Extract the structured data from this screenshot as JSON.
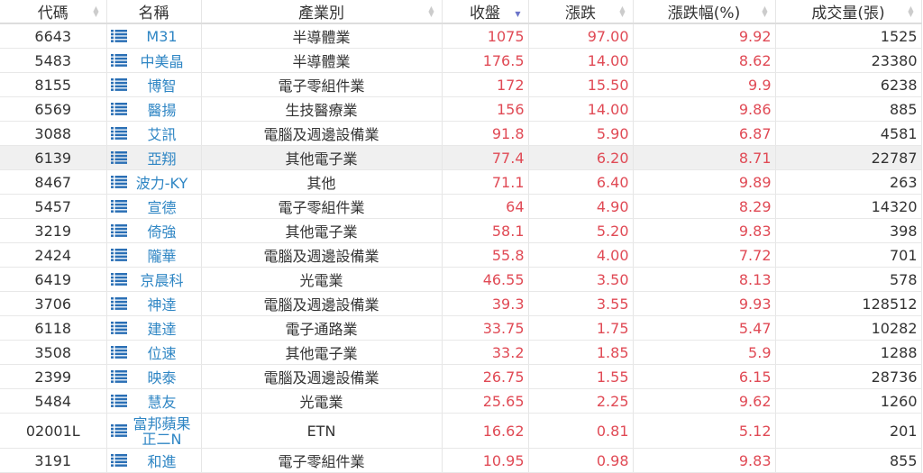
{
  "colors": {
    "up": "#e04a55",
    "name_link": "#2f86c4",
    "icon": "#2a6fb5"
  },
  "headers": [
    "代碼",
    "名稱",
    "產業別",
    "收盤",
    "漲跌",
    "漲跌幅(%)",
    "成交量(張)"
  ],
  "sorted_column": "收盤",
  "rows": [
    {
      "code": "6643",
      "name": "M31",
      "industry": "半導體業",
      "close": "1075",
      "change": "97.00",
      "pct": "9.92",
      "volume": "1525"
    },
    {
      "code": "5483",
      "name": "中美晶",
      "industry": "半導體業",
      "close": "176.5",
      "change": "14.00",
      "pct": "8.62",
      "volume": "23380"
    },
    {
      "code": "8155",
      "name": "博智",
      "industry": "電子零組件業",
      "close": "172",
      "change": "15.50",
      "pct": "9.9",
      "volume": "6238"
    },
    {
      "code": "6569",
      "name": "醫揚",
      "industry": "生技醫療業",
      "close": "156",
      "change": "14.00",
      "pct": "9.86",
      "volume": "885"
    },
    {
      "code": "3088",
      "name": "艾訊",
      "industry": "電腦及週邊設備業",
      "close": "91.8",
      "change": "5.90",
      "pct": "6.87",
      "volume": "4581"
    },
    {
      "code": "6139",
      "name": "亞翔",
      "industry": "其他電子業",
      "close": "77.4",
      "change": "6.20",
      "pct": "8.71",
      "volume": "22787"
    },
    {
      "code": "8467",
      "name": "波力-KY",
      "industry": "其他",
      "close": "71.1",
      "change": "6.40",
      "pct": "9.89",
      "volume": "263"
    },
    {
      "code": "5457",
      "name": "宣德",
      "industry": "電子零組件業",
      "close": "64",
      "change": "4.90",
      "pct": "8.29",
      "volume": "14320"
    },
    {
      "code": "3219",
      "name": "倚強",
      "industry": "其他電子業",
      "close": "58.1",
      "change": "5.20",
      "pct": "9.83",
      "volume": "398"
    },
    {
      "code": "2424",
      "name": "隴華",
      "industry": "電腦及週邊設備業",
      "close": "55.8",
      "change": "4.00",
      "pct": "7.72",
      "volume": "701"
    },
    {
      "code": "6419",
      "name": "京晨科",
      "industry": "光電業",
      "close": "46.55",
      "change": "3.50",
      "pct": "8.13",
      "volume": "578"
    },
    {
      "code": "3706",
      "name": "神達",
      "industry": "電腦及週邊設備業",
      "close": "39.3",
      "change": "3.55",
      "pct": "9.93",
      "volume": "128512"
    },
    {
      "code": "6118",
      "name": "建達",
      "industry": "電子通路業",
      "close": "33.75",
      "change": "1.75",
      "pct": "5.47",
      "volume": "10282"
    },
    {
      "code": "3508",
      "name": "位速",
      "industry": "其他電子業",
      "close": "33.2",
      "change": "1.85",
      "pct": "5.9",
      "volume": "1288"
    },
    {
      "code": "2399",
      "name": "映泰",
      "industry": "電腦及週邊設備業",
      "close": "26.75",
      "change": "1.55",
      "pct": "6.15",
      "volume": "28736"
    },
    {
      "code": "5484",
      "name": "慧友",
      "industry": "光電業",
      "close": "25.65",
      "change": "2.25",
      "pct": "9.62",
      "volume": "1260"
    },
    {
      "code": "02001L",
      "name": "富邦蘋果正二N",
      "industry": "ETN",
      "close": "16.62",
      "change": "0.81",
      "pct": "5.12",
      "volume": "201"
    },
    {
      "code": "3191",
      "name": "和進",
      "industry": "電子零組件業",
      "close": "10.95",
      "change": "0.98",
      "pct": "9.83",
      "volume": "855"
    }
  ]
}
